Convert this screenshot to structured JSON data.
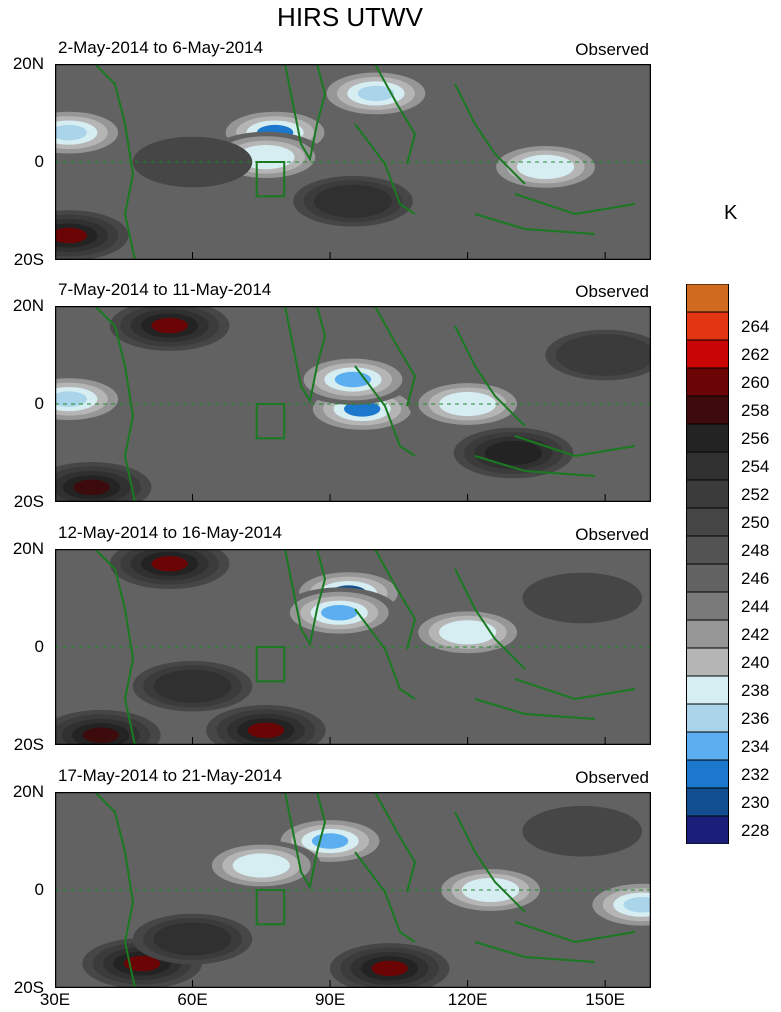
{
  "chart_data": {
    "type": "heatmap",
    "title": "HIRS UTWV",
    "colorbar": {
      "unit": "K",
      "levels": [
        228,
        230,
        232,
        234,
        236,
        238,
        240,
        242,
        244,
        246,
        248,
        250,
        252,
        254,
        256,
        258,
        260,
        262,
        264
      ],
      "colors": [
        "#1b1f7a",
        "#124f91",
        "#1c78cc",
        "#5baef0",
        "#a9d4ea",
        "#d6edf2",
        "#b5b5b5",
        "#969696",
        "#7a7a7a",
        "#626262",
        "#535353",
        "#464646",
        "#3b3b3b",
        "#303030",
        "#232323",
        "#3d0b0b",
        "#6b0505",
        "#c80606",
        "#e43512",
        "#d06a1e"
      ]
    },
    "x_axis": {
      "ticks": [
        "30E",
        "60E",
        "90E",
        "120E",
        "150E"
      ],
      "range": [
        30,
        160
      ]
    },
    "y_axis": {
      "ticks": [
        "20N",
        "0",
        "20S"
      ],
      "range": [
        -20,
        20
      ]
    },
    "box_region": {
      "lon": [
        74,
        80
      ],
      "lat": [
        -7,
        0
      ]
    },
    "panels": [
      {
        "period": "2-May-2014 to 6-May-2014",
        "label": "Observed",
        "features": [
          {
            "lon": 78,
            "lat": 6,
            "value": 231
          },
          {
            "lon": 76,
            "lat": 1,
            "value": 236
          },
          {
            "lon": 100,
            "lat": 14,
            "value": 234
          },
          {
            "lon": 137,
            "lat": -1,
            "value": 237
          },
          {
            "lon": 33,
            "lat": -15,
            "value": 258
          },
          {
            "lon": 33,
            "lat": 6,
            "value": 235
          },
          {
            "lon": 95,
            "lat": -8,
            "value": 252
          },
          {
            "lon": 60,
            "lat": 0,
            "value": 249
          }
        ]
      },
      {
        "period": "7-May-2014 to 11-May-2014",
        "label": "Observed",
        "features": [
          {
            "lon": 97,
            "lat": -1,
            "value": 230
          },
          {
            "lon": 95,
            "lat": 5,
            "value": 233
          },
          {
            "lon": 120,
            "lat": 0,
            "value": 236
          },
          {
            "lon": 55,
            "lat": 16,
            "value": 258
          },
          {
            "lon": 38,
            "lat": -17,
            "value": 257
          },
          {
            "lon": 33,
            "lat": 1,
            "value": 234
          },
          {
            "lon": 130,
            "lat": -10,
            "value": 254
          },
          {
            "lon": 150,
            "lat": 10,
            "value": 250
          }
        ]
      },
      {
        "period": "12-May-2014 to 16-May-2014",
        "label": "Observed",
        "features": [
          {
            "lon": 94,
            "lat": 11,
            "value": 228
          },
          {
            "lon": 92,
            "lat": 7,
            "value": 232
          },
          {
            "lon": 120,
            "lat": 3,
            "value": 236
          },
          {
            "lon": 55,
            "lat": 17,
            "value": 258
          },
          {
            "lon": 76,
            "lat": -17,
            "value": 258
          },
          {
            "lon": 40,
            "lat": -18,
            "value": 257
          },
          {
            "lon": 60,
            "lat": -8,
            "value": 252
          },
          {
            "lon": 145,
            "lat": 10,
            "value": 249
          }
        ]
      },
      {
        "period": "17-May-2014 to 21-May-2014",
        "label": "Observed",
        "features": [
          {
            "lon": 90,
            "lat": 10,
            "value": 232
          },
          {
            "lon": 75,
            "lat": 5,
            "value": 236
          },
          {
            "lon": 125,
            "lat": 0,
            "value": 237
          },
          {
            "lon": 49,
            "lat": -15,
            "value": 258
          },
          {
            "lon": 103,
            "lat": -16,
            "value": 259
          },
          {
            "lon": 60,
            "lat": -10,
            "value": 253
          },
          {
            "lon": 145,
            "lat": 12,
            "value": 248
          },
          {
            "lon": 158,
            "lat": -3,
            "value": 235
          }
        ]
      }
    ]
  }
}
